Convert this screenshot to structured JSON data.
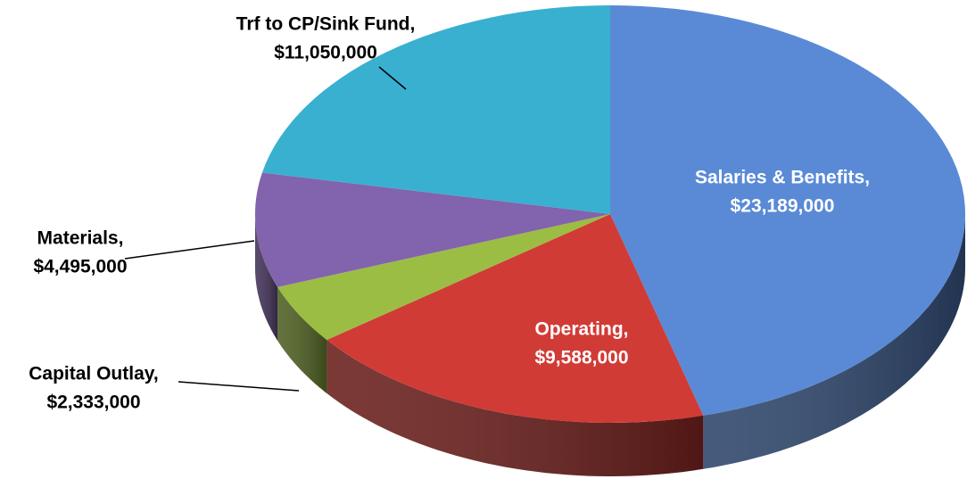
{
  "chart_data": {
    "type": "pie3d",
    "categories": [
      "Salaries & Benefits,",
      "Operating,",
      "Capital Outlay,",
      "Materials,",
      "Trf to CP/Sink Fund,"
    ],
    "values": [
      23189000,
      9588000,
      2333000,
      4495000,
      11050000
    ],
    "value_labels": [
      "$23,189,000",
      "$9,588,000",
      "$2,333,000",
      "$4,495,000",
      "$11,050,000"
    ],
    "colors": [
      "#5a8ad6",
      "#d13b36",
      "#9bbd44",
      "#8263ad",
      "#39b0d0"
    ]
  }
}
